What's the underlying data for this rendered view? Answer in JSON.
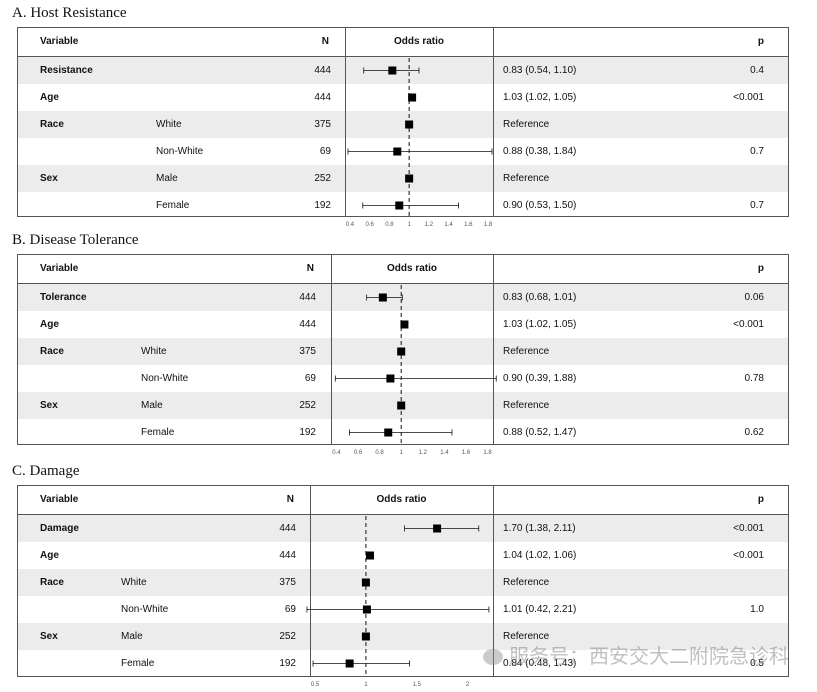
{
  "headers": {
    "variable": "Variable",
    "n": "N",
    "odds_ratio": "Odds ratio",
    "p": "p"
  },
  "watermark": "服务号：西安交大二附院急诊科",
  "chart_data": [
    {
      "type": "forest",
      "title": "A. Host Resistance",
      "xlim": [
        0.35,
        1.85
      ],
      "ticks": [
        "0.4",
        "0.6",
        "0.8",
        "1",
        "1.2",
        "1.4",
        "1.6",
        "1.8"
      ],
      "tick_values": [
        0.4,
        0.6,
        0.8,
        1.0,
        1.2,
        1.4,
        1.6,
        1.8
      ],
      "reference_line": 1,
      "rows": [
        {
          "variable": "Resistance",
          "level": "",
          "n": "444",
          "or": 0.83,
          "lo": 0.54,
          "hi": 1.1,
          "text": "0.83 (0.54, 1.10)",
          "p": "0.4"
        },
        {
          "variable": "Age",
          "level": "",
          "n": "444",
          "or": 1.03,
          "lo": 1.02,
          "hi": 1.05,
          "text": "1.03 (1.02, 1.05)",
          "p": "<0.001"
        },
        {
          "variable": "Race",
          "level": "White",
          "n": "375",
          "or": 1.0,
          "lo": null,
          "hi": null,
          "text": "Reference",
          "p": ""
        },
        {
          "variable": "",
          "level": "Non-White",
          "n": "69",
          "or": 0.88,
          "lo": 0.38,
          "hi": 1.84,
          "text": "0.88 (0.38, 1.84)",
          "p": "0.7"
        },
        {
          "variable": "Sex",
          "level": "Male",
          "n": "252",
          "or": 1.0,
          "lo": null,
          "hi": null,
          "text": "Reference",
          "p": ""
        },
        {
          "variable": "",
          "level": "Female",
          "n": "192",
          "or": 0.9,
          "lo": 0.53,
          "hi": 1.5,
          "text": "0.90 (0.53, 1.50)",
          "p": "0.7"
        }
      ]
    },
    {
      "type": "forest",
      "title": "B. Disease Tolerance",
      "xlim": [
        0.35,
        1.85
      ],
      "ticks": [
        "0.4",
        "0.6",
        "0.8",
        "1",
        "1.2",
        "1.4",
        "1.6",
        "1.8"
      ],
      "tick_values": [
        0.4,
        0.6,
        0.8,
        1.0,
        1.2,
        1.4,
        1.6,
        1.8
      ],
      "reference_line": 1,
      "rows": [
        {
          "variable": "Tolerance",
          "level": "",
          "n": "444",
          "or": 0.83,
          "lo": 0.68,
          "hi": 1.01,
          "text": "0.83 (0.68, 1.01)",
          "p": "0.06"
        },
        {
          "variable": "Age",
          "level": "",
          "n": "444",
          "or": 1.03,
          "lo": 1.02,
          "hi": 1.05,
          "text": "1.03 (1.02, 1.05)",
          "p": "<0.001"
        },
        {
          "variable": "Race",
          "level": "White",
          "n": "375",
          "or": 1.0,
          "lo": null,
          "hi": null,
          "text": "Reference",
          "p": ""
        },
        {
          "variable": "",
          "level": "Non-White",
          "n": "69",
          "or": 0.9,
          "lo": 0.39,
          "hi": 1.88,
          "text": "0.90 (0.39, 1.88)",
          "p": "0.78"
        },
        {
          "variable": "Sex",
          "level": "Male",
          "n": "252",
          "or": 1.0,
          "lo": null,
          "hi": null,
          "text": "Reference",
          "p": ""
        },
        {
          "variable": "",
          "level": "Female",
          "n": "192",
          "or": 0.88,
          "lo": 0.52,
          "hi": 1.47,
          "text": "0.88 (0.52, 1.47)",
          "p": "0.62"
        }
      ]
    },
    {
      "type": "forest",
      "title": "C. Damage",
      "xlim": [
        0.45,
        2.25
      ],
      "ticks": [
        "0.5",
        "1",
        "1.5",
        "2"
      ],
      "tick_values": [
        0.5,
        1.0,
        1.5,
        2.0
      ],
      "reference_line": 1,
      "rows": [
        {
          "variable": "Damage",
          "level": "",
          "n": "444",
          "or": 1.7,
          "lo": 1.38,
          "hi": 2.11,
          "text": "1.70 (1.38, 2.11)",
          "p": "<0.001"
        },
        {
          "variable": "Age",
          "level": "",
          "n": "444",
          "or": 1.04,
          "lo": 1.02,
          "hi": 1.06,
          "text": "1.04 (1.02, 1.06)",
          "p": "<0.001"
        },
        {
          "variable": "Race",
          "level": "White",
          "n": "375",
          "or": 1.0,
          "lo": null,
          "hi": null,
          "text": "Reference",
          "p": ""
        },
        {
          "variable": "",
          "level": "Non-White",
          "n": "69",
          "or": 1.01,
          "lo": 0.42,
          "hi": 2.21,
          "text": "1.01 (0.42, 2.21)",
          "p": "1.0"
        },
        {
          "variable": "Sex",
          "level": "Male",
          "n": "252",
          "or": 1.0,
          "lo": null,
          "hi": null,
          "text": "Reference",
          "p": ""
        },
        {
          "variable": "",
          "level": "Female",
          "n": "192",
          "or": 0.84,
          "lo": 0.48,
          "hi": 1.43,
          "text": "0.84 (0.48, 1.43)",
          "p": "0.5"
        }
      ]
    }
  ]
}
